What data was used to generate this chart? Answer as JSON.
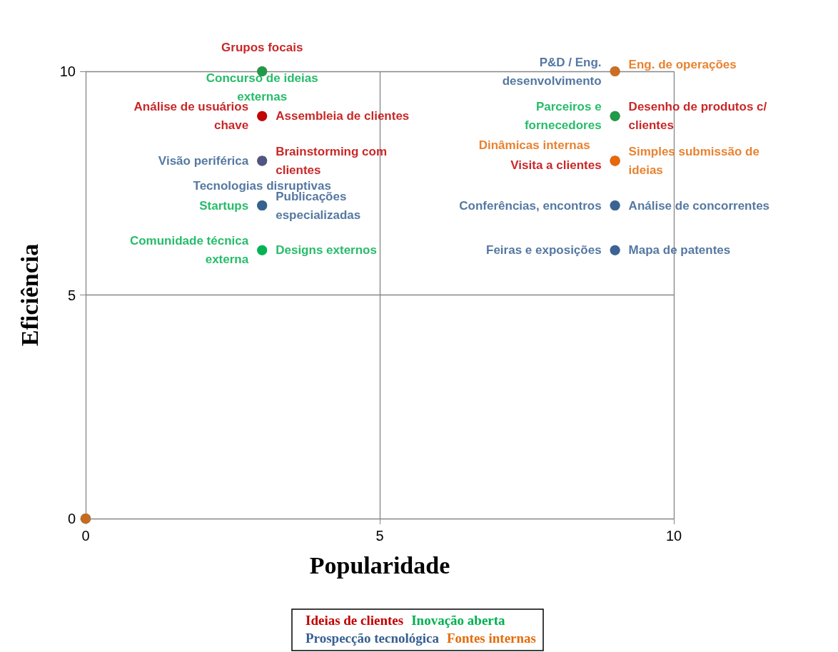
{
  "chart_data": {
    "type": "scatter",
    "xlabel": "Popularidade",
    "ylabel": "Eficiência",
    "xlim": [
      0,
      10
    ],
    "ylim": [
      0,
      10
    ],
    "xticks": [
      0,
      5,
      10
    ],
    "yticks": [
      0,
      5,
      10
    ],
    "grid": true,
    "legend": "bottom",
    "marker": "circle",
    "series": [
      {
        "name": "Ideias de clientes",
        "color": "#c00000",
        "x": [
          3,
          3,
          3,
          3,
          9,
          9,
          0
        ],
        "values": [
          10,
          9,
          9,
          8,
          9,
          8,
          0
        ],
        "value_labels": [
          "Grupos focais",
          "Análise de usuários chave",
          "Assembleia de clientes",
          "Brainstorming com clientes",
          "Desenho de produtos c/ clientes",
          "Visita a clientes",
          null
        ]
      },
      {
        "name": "Inovação aberta",
        "color": "#00b050",
        "x": [
          3,
          3,
          3,
          3,
          9,
          0
        ],
        "values": [
          10,
          7,
          6,
          6,
          9,
          0
        ],
        "value_labels": [
          "Concurso de ideias externas",
          "Startups",
          "Comunidade técnica externa",
          "Designs externos",
          "Parceiros e fornecedores",
          null
        ]
      },
      {
        "name": "Prospecção tecnológica",
        "color": "#376092",
        "x": [
          3,
          3,
          3,
          9,
          9,
          9,
          9,
          9,
          0
        ],
        "values": [
          8,
          7,
          7,
          10,
          7,
          7,
          6,
          6,
          0
        ],
        "value_labels": [
          "Visão periférica",
          "Tecnologias disruptivas",
          "Publicações especializadas",
          "P&D / Eng. desenvolvimento",
          "Conferências, encontros",
          "Análise de concorrentes",
          "Feiras e exposições",
          "Mapa de patentes",
          null
        ]
      },
      {
        "name": "Fontes internas",
        "color": "#e46c0a",
        "x": [
          9,
          9,
          9,
          0
        ],
        "values": [
          10,
          8,
          8,
          0
        ],
        "value_labels": [
          "Eng. de operações",
          "Dinâmicas internas",
          "Simples submissão de ideias",
          null
        ]
      }
    ]
  }
}
